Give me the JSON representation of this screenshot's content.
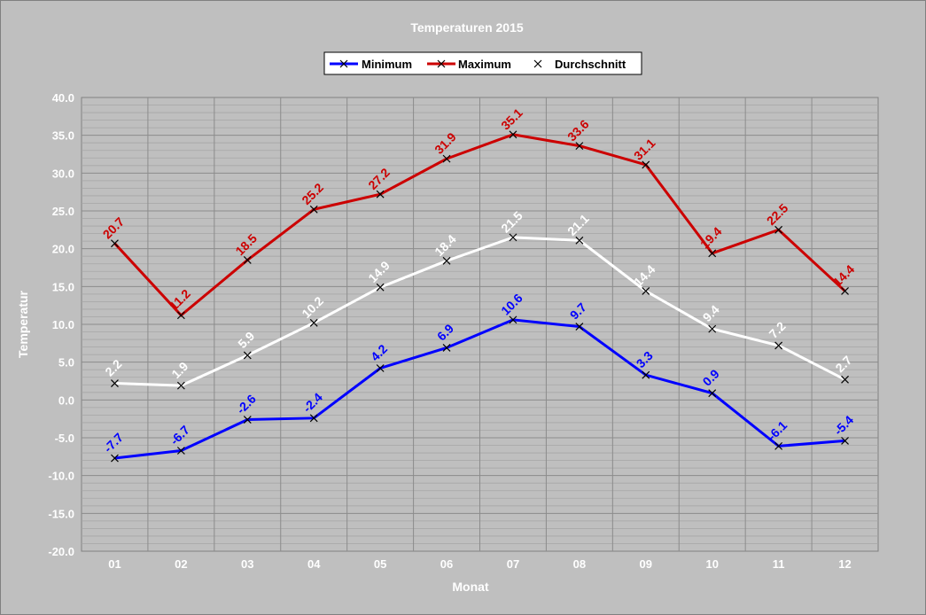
{
  "chart_data": {
    "type": "line",
    "title": "Temperaturen 2015",
    "xlabel": "Monat",
    "ylabel": "Temperatur",
    "categories": [
      "01",
      "02",
      "03",
      "04",
      "05",
      "06",
      "07",
      "08",
      "09",
      "10",
      "11",
      "12"
    ],
    "ylim": [
      -20,
      40
    ],
    "yticks": [
      "40.0",
      "35.0",
      "30.0",
      "25.0",
      "20.0",
      "15.0",
      "10.0",
      "5.0",
      "0.0",
      "-5.0",
      "-10.0",
      "-15.0",
      "-20.0"
    ],
    "grid": true,
    "legend_position": "top",
    "series": [
      {
        "name": "Minimum",
        "color": "#0000ff",
        "values": [
          -7.7,
          -6.7,
          -2.6,
          -2.4,
          4.2,
          6.9,
          10.6,
          9.7,
          3.3,
          0.9,
          -6.1,
          -5.4
        ],
        "labels": [
          "-7.7",
          "-6.7",
          "-2.6",
          "-2.4",
          "4.2",
          "6.9",
          "10.6",
          "9.7",
          "3.3",
          "0.9",
          "-6.1",
          "-5.4"
        ]
      },
      {
        "name": "Maximum",
        "color": "#cc0000",
        "values": [
          20.7,
          11.2,
          18.5,
          25.2,
          27.2,
          31.9,
          35.1,
          33.6,
          31.1,
          19.4,
          22.5,
          14.4
        ],
        "labels": [
          "20.7",
          "11.2",
          "18.5",
          "25.2",
          "27.2",
          "31.9",
          "35.1",
          "33.6",
          "31.1",
          "19.4",
          "22.5",
          "14.4"
        ]
      },
      {
        "name": "Durchschnitt",
        "color": "#ffffff",
        "values": [
          2.2,
          1.9,
          5.9,
          10.2,
          14.9,
          18.4,
          21.5,
          21.1,
          14.4,
          9.4,
          7.2,
          2.7
        ],
        "labels": [
          "2.2",
          "1.9",
          "5.9",
          "10.2",
          "14.9",
          "18.4",
          "21.5",
          "21.1",
          "14.4",
          "9.4",
          "7.2",
          "2.7"
        ]
      }
    ]
  }
}
